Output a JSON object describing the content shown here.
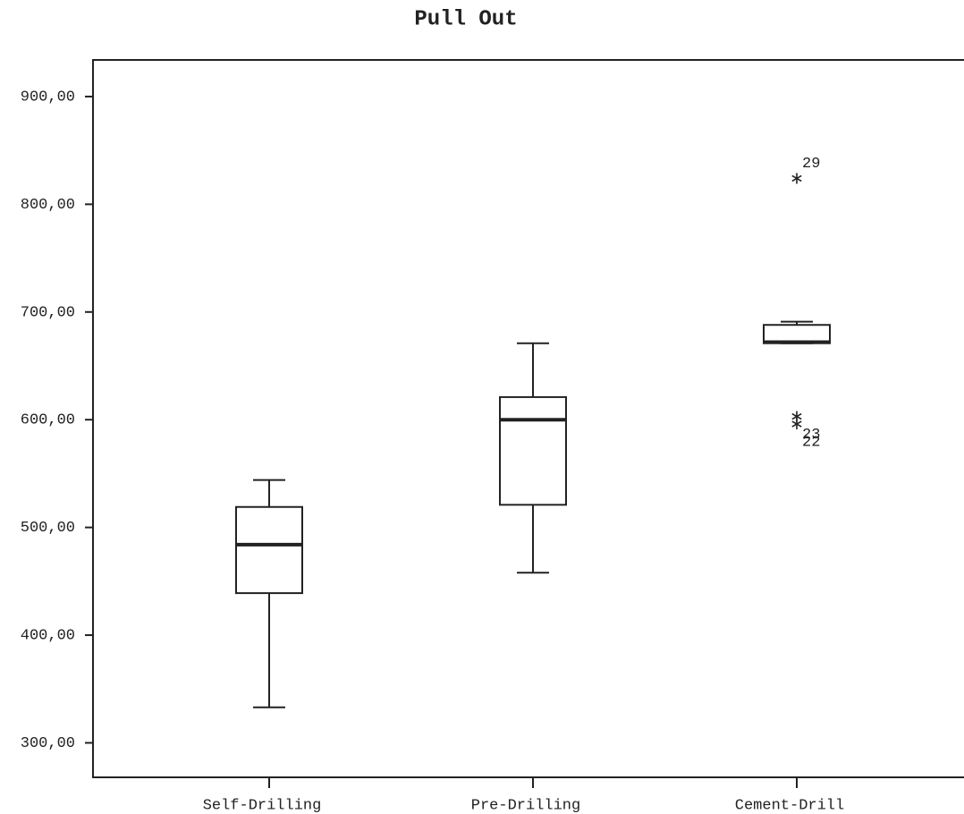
{
  "chart_data": {
    "type": "box",
    "title": "Pull Out",
    "categories": [
      "Self-Drilling",
      "Pre-Drilling",
      "Cement-Drill"
    ],
    "series": [
      {
        "color": "#222222",
        "min": [
          333,
          458,
          671
        ],
        "q1": [
          439,
          521,
          671
        ],
        "median": [
          484,
          600,
          672
        ],
        "q3": [
          519,
          621,
          688
        ],
        "max": [
          544,
          671,
          691
        ],
        "outliers": [
          [],
          [],
          [
            {
              "value": 824,
              "label": "29"
            },
            {
              "value": 603,
              "label": "23"
            },
            {
              "value": 596,
              "label": "22"
            }
          ]
        ]
      }
    ],
    "ylim": [
      268,
      934
    ],
    "yticks": [
      {
        "value": 300,
        "label": "300,00"
      },
      {
        "value": 400,
        "label": "400,00"
      },
      {
        "value": 500,
        "label": "500,00"
      },
      {
        "value": 600,
        "label": "600,00"
      },
      {
        "value": 700,
        "label": "700,00"
      },
      {
        "value": 800,
        "label": "800,00"
      },
      {
        "value": 900,
        "label": "900,00"
      }
    ],
    "grid": false
  }
}
